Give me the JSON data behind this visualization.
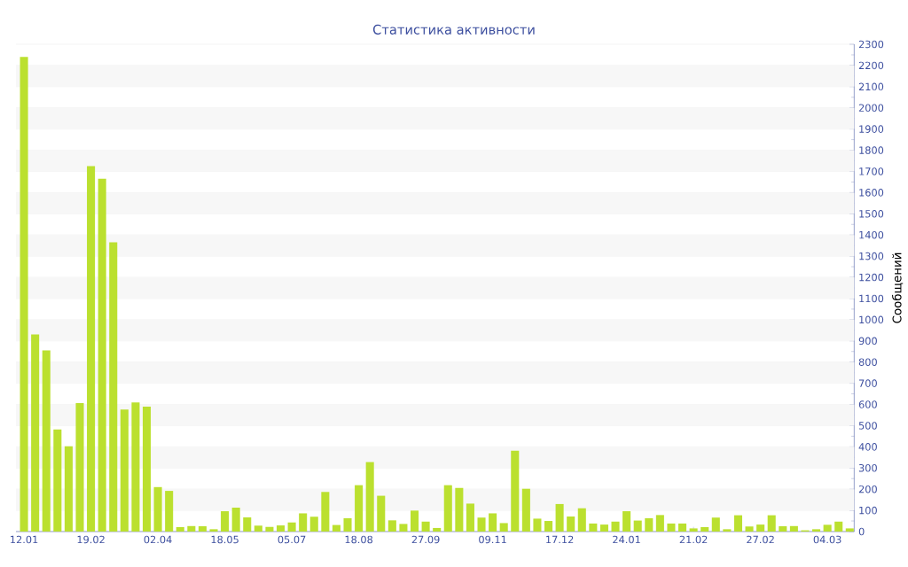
{
  "chart_data": {
    "type": "bar",
    "title": "Статистика активности",
    "ylabel": "Сообщений",
    "categories": [
      "12.01",
      null,
      null,
      null,
      null,
      null,
      "19.02",
      null,
      null,
      null,
      null,
      null,
      "02.04",
      null,
      null,
      null,
      null,
      null,
      "18.05",
      null,
      null,
      null,
      null,
      null,
      "05.07",
      null,
      null,
      null,
      null,
      null,
      "18.08",
      null,
      null,
      null,
      null,
      null,
      "27.09",
      null,
      null,
      null,
      null,
      null,
      "09.11",
      null,
      null,
      null,
      null,
      null,
      "17.12",
      null,
      null,
      null,
      null,
      null,
      "24.01",
      null,
      null,
      null,
      null,
      null,
      "21.02",
      null,
      null,
      null,
      null,
      null,
      "27.02",
      null,
      null,
      null,
      null,
      null,
      "04.03",
      null,
      null
    ],
    "values": [
      2240,
      930,
      855,
      482,
      403,
      606,
      1725,
      1665,
      1365,
      576,
      609,
      590,
      210,
      192,
      21,
      26,
      25,
      11,
      96,
      113,
      67,
      28,
      22,
      29,
      43,
      86,
      70,
      187,
      31,
      63,
      219,
      328,
      169,
      53,
      36,
      99,
      47,
      17,
      219,
      206,
      132,
      66,
      86,
      40,
      382,
      202,
      61,
      50,
      130,
      71,
      110,
      38,
      33,
      47,
      96,
      52,
      63,
      78,
      38,
      38,
      15,
      21,
      66,
      11,
      77,
      24,
      33,
      77,
      25,
      26,
      6,
      11,
      32,
      47,
      15
    ],
    "color": "#bbe02f",
    "ylim": [
      0,
      2300
    ],
    "yticks": [
      0,
      100,
      200,
      300,
      400,
      500,
      600,
      700,
      800,
      900,
      1000,
      1100,
      1200,
      1300,
      1400,
      1500,
      1600,
      1700,
      1800,
      1900,
      2000,
      2100,
      2200,
      2300
    ],
    "grid": "y"
  }
}
